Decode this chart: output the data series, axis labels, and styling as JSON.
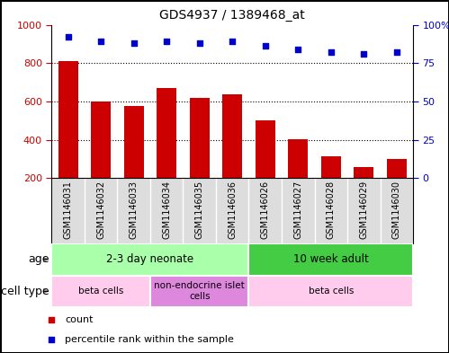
{
  "title": "GDS4937 / 1389468_at",
  "samples": [
    "GSM1146031",
    "GSM1146032",
    "GSM1146033",
    "GSM1146034",
    "GSM1146035",
    "GSM1146036",
    "GSM1146026",
    "GSM1146027",
    "GSM1146028",
    "GSM1146029",
    "GSM1146030"
  ],
  "counts": [
    810,
    600,
    578,
    672,
    618,
    638,
    500,
    405,
    315,
    258,
    300
  ],
  "percentiles": [
    92,
    89,
    88,
    89,
    88,
    89,
    86,
    84,
    82,
    81,
    82
  ],
  "bar_color": "#cc0000",
  "dot_color": "#0000cc",
  "left_ylim": [
    200,
    1000
  ],
  "right_ylim": [
    0,
    100
  ],
  "left_yticks": [
    200,
    400,
    600,
    800,
    1000
  ],
  "right_yticks": [
    0,
    25,
    50,
    75,
    100
  ],
  "right_yticklabels": [
    "0",
    "25",
    "50",
    "75",
    "100%"
  ],
  "grid_values": [
    400,
    600,
    800
  ],
  "age_groups": [
    {
      "label": "2-3 day neonate",
      "start": 0,
      "end": 6,
      "color": "#aaffaa"
    },
    {
      "label": "10 week adult",
      "start": 6,
      "end": 11,
      "color": "#44cc44"
    }
  ],
  "cell_type_groups": [
    {
      "label": "beta cells",
      "start": 0,
      "end": 3,
      "color": "#ffccee"
    },
    {
      "label": "non-endocrine islet\ncells",
      "start": 3,
      "end": 6,
      "color": "#dd88dd"
    },
    {
      "label": "beta cells",
      "start": 6,
      "end": 11,
      "color": "#ffccee"
    }
  ],
  "legend_items": [
    {
      "label": "count",
      "color": "#cc0000",
      "marker": "s"
    },
    {
      "label": "percentile rank within the sample",
      "color": "#0000cc",
      "marker": "s"
    }
  ],
  "sample_label_bg": "#dddddd",
  "label_arrow_color": "#888888"
}
